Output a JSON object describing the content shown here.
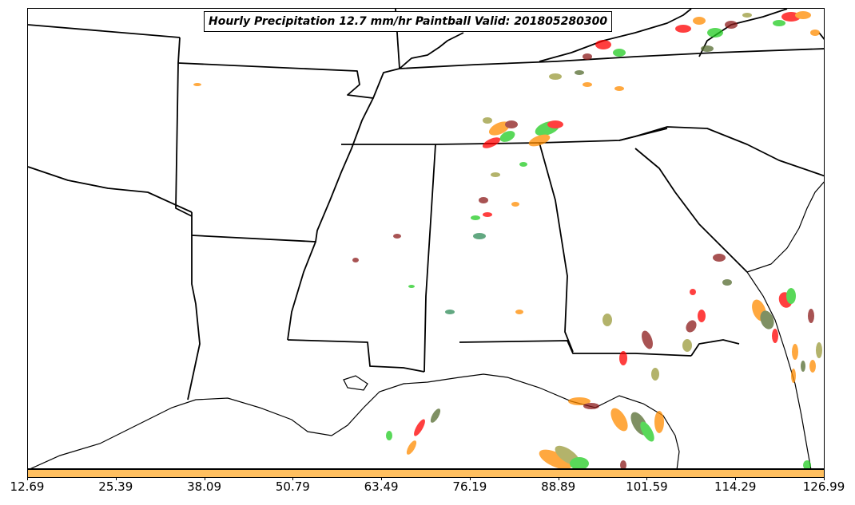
{
  "title": "Hourly Precipitation 12.7 mm/hr Paintball Valid: 201805280300",
  "colorbar": {
    "color": "#ffbf5f",
    "ticks": [
      "12.69",
      "25.39",
      "38.09",
      "50.79",
      "63.49",
      "76.19",
      "88.89",
      "101.59",
      "114.29",
      "126.99"
    ]
  },
  "map": {
    "region": "Southeastern United States",
    "border_color": "#000000",
    "member_colors": [
      "#ff0000",
      "#22cc22",
      "#ff8c00",
      "#8b1a1a",
      "#556b2f",
      "#9a9a3a",
      "#2e8b57"
    ]
  }
}
